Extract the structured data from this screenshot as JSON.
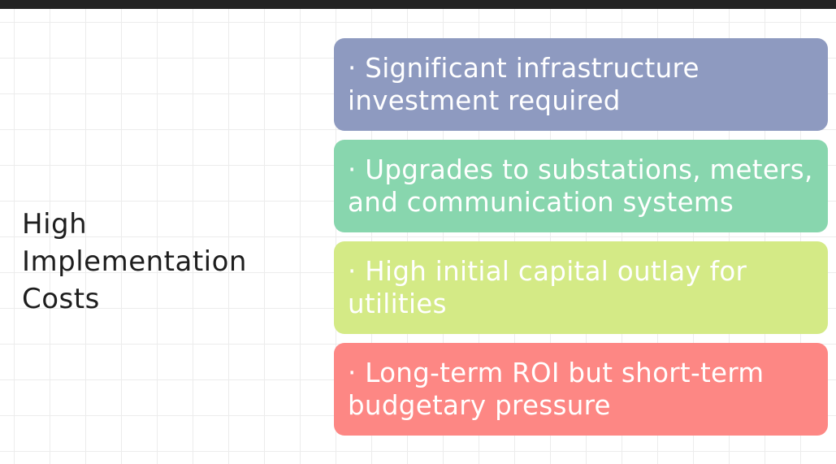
{
  "topic": {
    "lines": [
      "High",
      "Implementation",
      "Costs"
    ]
  },
  "colors": {
    "background": "#ffffff",
    "grid": "#ececec",
    "top_bar": "#222222",
    "topic_text": "#1e1e1e",
    "card_text": "#ffffff"
  },
  "cards": [
    {
      "lines": [
        "· Significant infrastructure",
        "investment required"
      ],
      "color": "#8e9ac0"
    },
    {
      "lines": [
        "· Upgrades to substations, meters,",
        "and communication systems"
      ],
      "color": "#88d6ae"
    },
    {
      "lines": [
        "· High initial capital outlay for",
        "utilities"
      ],
      "color": "#d4ea86"
    },
    {
      "lines": [
        "· Long-term ROI but short-term",
        "budgetary pressure"
      ],
      "color": "#fd8784"
    }
  ]
}
